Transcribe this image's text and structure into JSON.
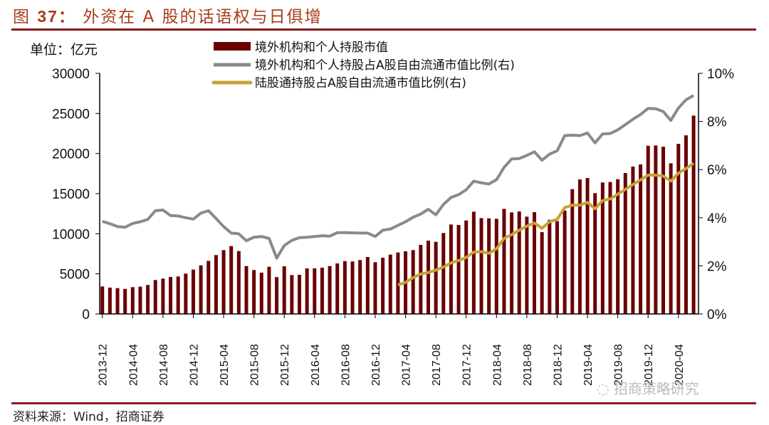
{
  "header": {
    "fig_label": "图",
    "fig_number": "37：",
    "title_text": "外资在 A 股的话语权与日俱增"
  },
  "footer": {
    "source": "资料来源：Wind，招商证券",
    "watermark": "招商策略研究"
  },
  "colors": {
    "bar": "#6b0000",
    "grey_line": "#8a8a8a",
    "gold_line": "#c9a037",
    "rule": "#8b1a1a"
  },
  "chart_data": {
    "type": "bar+line",
    "title": "外资在 A 股的话语权与日俱增",
    "unit_label": "单位：亿元",
    "start_month": "2013-12",
    "months_count": 79,
    "x_tick_labels": [
      "2013-12",
      "2014-04",
      "2014-08",
      "2014-12",
      "2015-04",
      "2015-08",
      "2015-12",
      "2016-04",
      "2016-08",
      "2016-12",
      "2017-04",
      "2017-08",
      "2017-12",
      "2018-04",
      "2018-08",
      "2018-12",
      "2019-04",
      "2019-08",
      "2019-12",
      "2020-04"
    ],
    "y_left": {
      "min": 0,
      "max": 30000,
      "ticks": [
        "0",
        "5000",
        "10000",
        "15000",
        "20000",
        "25000",
        "30000"
      ]
    },
    "y_right": {
      "min": 0,
      "max": 10,
      "ticks": [
        "0%",
        "2%",
        "4%",
        "6%",
        "8%",
        "10%"
      ]
    },
    "legend": [
      "境外机构和个人持股市值",
      "境外机构和个人持股占A股自由流通市值比例(右)",
      "陆股通持股占A股自由流通市值比例(右)"
    ],
    "legend_position": "top",
    "series": [
      {
        "name": "境外机构和个人持股市值",
        "type": "bar",
        "axis": "left",
        "start_index": 0,
        "values": [
          3430,
          3280,
          3220,
          3130,
          3340,
          3400,
          3610,
          4230,
          4410,
          4610,
          4670,
          5030,
          5530,
          6060,
          6620,
          7340,
          7960,
          8460,
          7840,
          5970,
          5470,
          5150,
          5880,
          4590,
          5940,
          4850,
          4880,
          5680,
          5680,
          5770,
          5970,
          6300,
          6590,
          6540,
          6720,
          7100,
          6450,
          7010,
          7400,
          7660,
          7810,
          7960,
          8610,
          9140,
          8990,
          10090,
          11150,
          11090,
          11650,
          12750,
          11950,
          11920,
          11860,
          13100,
          12660,
          12780,
          12130,
          12690,
          10200,
          11740,
          11560,
          12900,
          15560,
          16770,
          16950,
          15060,
          16390,
          16450,
          16800,
          17570,
          18370,
          18640,
          20970,
          21000,
          20850,
          18780,
          21210,
          22270,
          24730
        ]
      },
      {
        "name": "境外机构和个人持股占A股自由流通市值比例(右)",
        "type": "line",
        "axis": "right",
        "start_index": 0,
        "values": [
          3.85,
          3.75,
          3.63,
          3.6,
          3.76,
          3.83,
          3.93,
          4.29,
          4.32,
          4.09,
          4.07,
          4.0,
          3.94,
          4.19,
          4.29,
          3.97,
          3.63,
          3.36,
          3.33,
          3.04,
          3.19,
          3.22,
          3.14,
          2.32,
          2.84,
          3.06,
          3.17,
          3.19,
          3.22,
          3.25,
          3.23,
          3.38,
          3.38,
          3.37,
          3.36,
          3.36,
          3.22,
          3.48,
          3.53,
          3.68,
          3.83,
          4.02,
          4.15,
          4.35,
          4.12,
          4.55,
          4.84,
          4.96,
          5.16,
          5.52,
          5.45,
          5.4,
          5.58,
          6.09,
          6.44,
          6.46,
          6.59,
          6.74,
          6.39,
          6.64,
          6.78,
          7.41,
          7.43,
          7.41,
          7.52,
          7.11,
          7.48,
          7.5,
          7.65,
          7.87,
          8.09,
          8.29,
          8.54,
          8.53,
          8.41,
          8.04,
          8.56,
          8.9,
          9.08
        ]
      },
      {
        "name": "陆股通持股占A股自由流通市值比例(右)",
        "type": "line",
        "axis": "right",
        "start_index": 39,
        "values": [
          1.21,
          1.31,
          1.51,
          1.66,
          1.72,
          1.82,
          1.95,
          2.12,
          2.22,
          2.35,
          2.57,
          2.59,
          2.52,
          2.71,
          3.14,
          3.3,
          3.48,
          3.65,
          3.78,
          3.56,
          3.83,
          3.93,
          4.42,
          4.52,
          4.52,
          4.64,
          4.37,
          4.71,
          4.78,
          4.98,
          5.18,
          5.38,
          5.57,
          5.77,
          5.77,
          5.73,
          5.52,
          5.85,
          6.04,
          6.26
        ]
      }
    ],
    "grid": false
  }
}
